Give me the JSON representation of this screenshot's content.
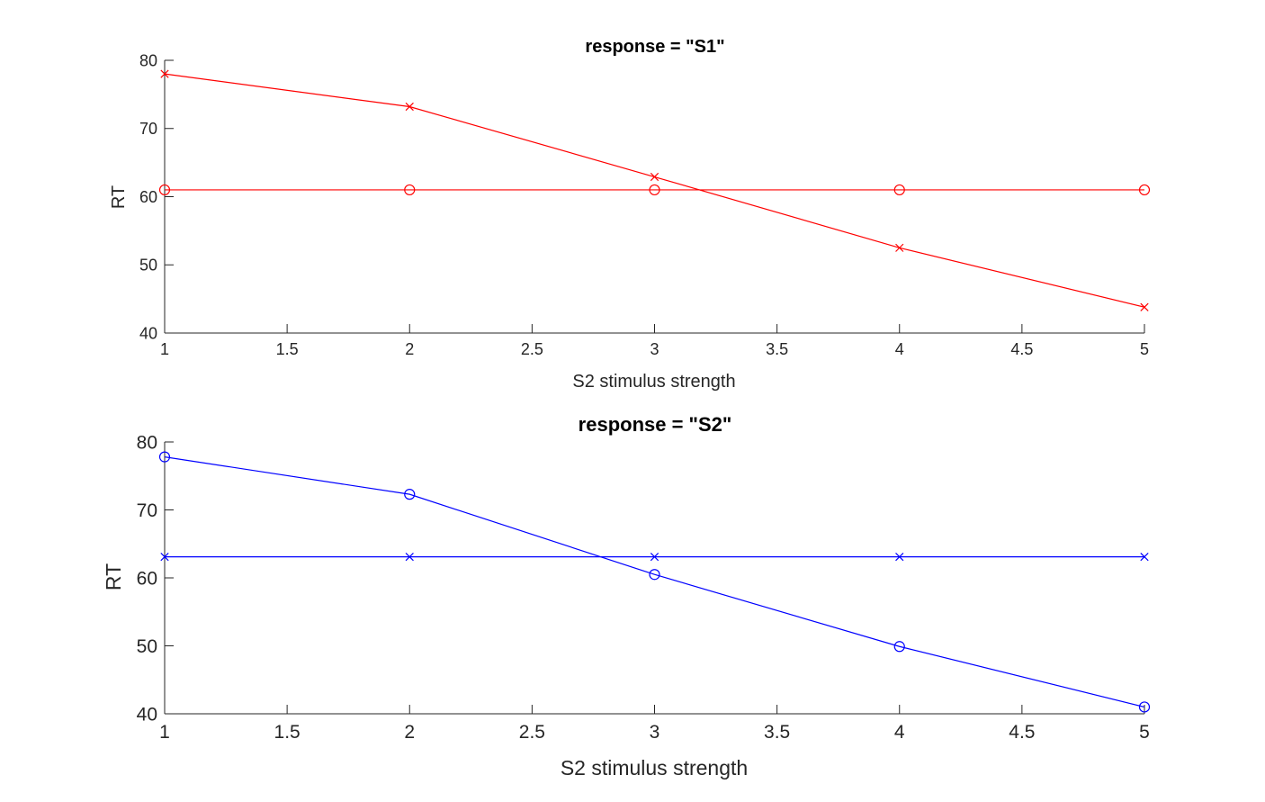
{
  "chart_data": [
    {
      "type": "line",
      "title": "response = \"S1\"",
      "xlabel": "S2 stimulus strength",
      "ylabel": "RT",
      "xlim": [
        1,
        5
      ],
      "ylim": [
        40,
        80
      ],
      "xticks": [
        "1",
        "1.5",
        "2",
        "2.5",
        "3",
        "3.5",
        "4",
        "4.5",
        "5"
      ],
      "yticks": [
        "40",
        "50",
        "60",
        "70",
        "80"
      ],
      "grid": false,
      "x": [
        1,
        2,
        3,
        4,
        5
      ],
      "series": [
        {
          "marker": "x",
          "color": "#ff0000",
          "values": [
            78.0,
            73.2,
            62.9,
            52.5,
            43.8
          ]
        },
        {
          "marker": "o",
          "color": "#ff0000",
          "values": [
            61.0,
            61.0,
            61.0,
            61.0,
            61.0
          ]
        }
      ]
    },
    {
      "type": "line",
      "title": "response = \"S2\"",
      "xlabel": "S2 stimulus strength",
      "ylabel": "RT",
      "xlim": [
        1,
        5
      ],
      "ylim": [
        40,
        80
      ],
      "xticks": [
        "1",
        "1.5",
        "2",
        "2.5",
        "3",
        "3.5",
        "4",
        "4.5",
        "5"
      ],
      "yticks": [
        "40",
        "50",
        "60",
        "70",
        "80"
      ],
      "grid": false,
      "x": [
        1,
        2,
        3,
        4,
        5
      ],
      "series": [
        {
          "marker": "o",
          "color": "#0000ff",
          "values": [
            77.8,
            72.3,
            60.5,
            49.9,
            41.0
          ]
        },
        {
          "marker": "x",
          "color": "#0000ff",
          "values": [
            63.1,
            63.1,
            63.1,
            63.1,
            63.1
          ]
        }
      ]
    }
  ]
}
